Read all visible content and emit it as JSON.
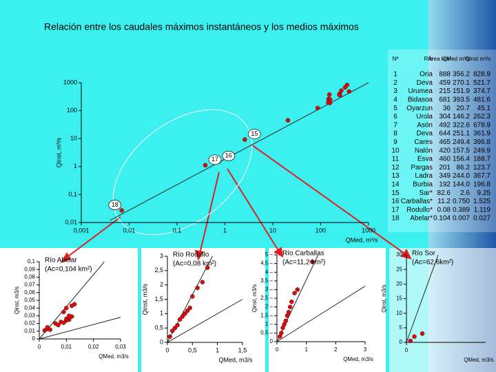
{
  "title": "Relación entre los caudales máximos instantáneos y los medios máximos",
  "chart_data": [
    {
      "type": "scatter",
      "log_x": true,
      "log_y": true,
      "color": "#d01010",
      "x_label": "QMed, m³/s",
      "y_label": "Qinst, m³/s",
      "xlim": [
        0.001,
        1000
      ],
      "ylim": [
        0.01,
        1000
      ],
      "xticks": [
        {
          "value": 0.001,
          "label": "0,001"
        },
        {
          "value": 0.01,
          "label": "0,01"
        },
        {
          "value": 0.1,
          "label": "0,1"
        },
        1,
        10,
        100,
        1000
      ],
      "yticks": [
        {
          "value": 0.01,
          "label": "0,01"
        },
        {
          "value": 0.1,
          "label": "0,1"
        },
        1,
        10,
        100,
        1000
      ],
      "x": [
        356.2,
        270.1,
        151.9,
        393.5,
        20.7,
        146.2,
        322.6,
        251.1,
        249.4,
        157.5,
        156.4,
        86.2,
        244.0,
        144.0,
        2.6,
        0.75,
        0.389,
        0.007
      ],
      "values": [
        828.9,
        521.7,
        374.7,
        481.6,
        45.1,
        262.3,
        678.9,
        361.9,
        396.8,
        249.9,
        188.7,
        123.7,
        367.7,
        196.8,
        9.25,
        1.525,
        1.119,
        0.027
      ],
      "lines": [
        {
          "x": [
            0.004,
            1000
          ],
          "values": [
            0.012,
            1000
          ]
        }
      ],
      "annotations": [
        "15",
        "16",
        "17",
        "18"
      ]
    },
    {
      "type": "scatter",
      "title": "Río Abelar",
      "subtitle": "(Ac=0,104 km²)",
      "color": "#d01010",
      "x_label": "QMed, m3/s",
      "y_label": "Qinst, m3/s",
      "xlim": [
        0,
        0.03
      ],
      "ylim": [
        0,
        0.1
      ],
      "xticks": [
        0,
        {
          "value": 0.01,
          "label": "0,01"
        },
        {
          "value": 0.02,
          "label": "0,02"
        },
        {
          "value": 0.03,
          "label": "0,03"
        }
      ],
      "yticks": [
        0,
        {
          "value": 0.01,
          "label": "0,01"
        },
        {
          "value": 0.02,
          "label": "0,02"
        },
        {
          "value": 0.03,
          "label": "0,03"
        },
        {
          "value": 0.04,
          "label": "0,04"
        },
        {
          "value": 0.05,
          "label": "0,05"
        },
        {
          "value": 0.06,
          "label": "0,06"
        },
        {
          "value": 0.07,
          "label": "0,07"
        },
        {
          "value": 0.08,
          "label": "0,08"
        },
        {
          "value": 0.09,
          "label": "0,09"
        },
        {
          "value": 0.1,
          "label": "0,1"
        }
      ],
      "x": [
        0.002,
        0.003,
        0.003,
        0.004,
        0.006,
        0.007,
        0.008,
        0.009,
        0.01,
        0.01,
        0.011,
        0.011,
        0.012,
        0.009,
        0.011,
        0.01,
        0.012,
        0.013
      ],
      "values": [
        0.011,
        0.013,
        0.015,
        0.012,
        0.02,
        0.018,
        0.022,
        0.021,
        0.024,
        0.026,
        0.025,
        0.028,
        0.029,
        0.035,
        0.03,
        0.04,
        0.043,
        0.045
      ],
      "lines": [
        {
          "x": [
            0,
            0.024
          ],
          "values": [
            0,
            0.1
          ]
        },
        {
          "x": [
            0,
            0.03
          ],
          "values": [
            0,
            0.028
          ]
        }
      ]
    },
    {
      "type": "scatter",
      "title": "Río Rodullo",
      "subtitle": "(Ac=0,08 km²)",
      "color": "#d01010",
      "x_label": "QMed, m3/s",
      "y_label": "Qinst, m3/s",
      "xlim": [
        0,
        1.5
      ],
      "ylim": [
        0,
        3
      ],
      "xticks": [
        0,
        {
          "value": 0.5,
          "label": "0,5"
        },
        1,
        {
          "value": 1.5,
          "label": "1,5"
        }
      ],
      "yticks": [
        0,
        {
          "value": 0.5,
          "label": "0,5"
        },
        1,
        {
          "value": 1.5,
          "label": "1,5"
        },
        2,
        {
          "value": 2.5,
          "label": "2,5"
        },
        3
      ],
      "x": [
        0.05,
        0.1,
        0.15,
        0.2,
        0.25,
        0.3,
        0.35,
        0.4,
        0.45,
        0.5,
        0.6,
        0.7,
        0.8
      ],
      "values": [
        0.2,
        0.4,
        0.5,
        0.6,
        0.8,
        0.9,
        1.0,
        1.1,
        1.2,
        1.6,
        1.9,
        2.1,
        2.6
      ],
      "lines": [
        {
          "x": [
            0,
            0.9
          ],
          "values": [
            0,
            3
          ]
        },
        {
          "x": [
            0,
            1.5
          ],
          "values": [
            0,
            1.5
          ]
        }
      ]
    },
    {
      "type": "scatter",
      "title": "Río Carballas",
      "subtitle": "(Ac=11,2 km²)",
      "color": "#d01010",
      "x_label": "QMed, m3/s",
      "y_label": "Qinst, m3/s",
      "xlim": [
        0,
        3
      ],
      "ylim": [
        0,
        5
      ],
      "xticks": [
        0,
        1,
        2,
        3
      ],
      "yticks": [
        0,
        {
          "value": 0.5,
          "label": "0,5 –"
        },
        {
          "value": 1,
          "label": "1 –"
        },
        {
          "value": 1.5,
          "label": "1,5 –"
        },
        {
          "value": 2,
          "label": "2 –"
        },
        {
          "value": 2.5,
          "label": "2,5 –"
        },
        {
          "value": 3,
          "label": "3 –"
        },
        {
          "value": 3.5,
          "label": "3,5 –"
        },
        {
          "value": 4,
          "label": "4 –"
        },
        {
          "value": 4.5,
          "label": "4,5 –"
        },
        {
          "value": 5,
          "label": "5 –"
        }
      ],
      "x": [
        0.1,
        0.15,
        0.2,
        0.25,
        0.3,
        0.35,
        0.4,
        0.45,
        0.5,
        0.6,
        0.7,
        1.2
      ],
      "values": [
        0.3,
        0.5,
        0.8,
        1.0,
        1.2,
        1.5,
        1.7,
        2.0,
        2.3,
        2.8,
        3.0,
        4.6
      ],
      "lines": [
        {
          "x": [
            0,
            1.4
          ],
          "values": [
            0,
            5
          ]
        },
        {
          "x": [
            0,
            3
          ],
          "values": [
            0,
            3.2
          ]
        }
      ]
    },
    {
      "type": "scatter",
      "title": "Río Sor",
      "subtitle": "(Ac=62,6km²)",
      "color": "#d01010",
      "x_label": "QMed, m3/s",
      "y_label": "Qinst, m3/s",
      "xlim": [
        0,
        10
      ],
      "ylim": [
        0,
        30
      ],
      "xticks": [
        0
      ],
      "yticks": [
        0,
        5,
        10,
        15,
        20,
        25,
        30
      ],
      "x": [
        0.5,
        1,
        2
      ],
      "values": [
        0.5,
        2,
        3
      ],
      "lines": [
        {
          "x": [
            0,
            4
          ],
          "values": [
            0,
            30
          ]
        }
      ]
    }
  ],
  "table": {
    "header": [
      "Nº",
      "Río",
      "Área km²",
      "QMed m³/s",
      "Qinst m³/s"
    ],
    "rows": [
      [
        "1",
        "Oria",
        "888",
        "356.2",
        "828.9"
      ],
      [
        "2",
        "Deva",
        "459",
        "270.1",
        "521.7"
      ],
      [
        "3",
        "Urumea",
        "215",
        "151.9",
        "374.7"
      ],
      [
        "4",
        "Bidasoa",
        "681",
        "393.5",
        "481.6"
      ],
      [
        "5",
        "Oyarzun",
        "36",
        "20.7",
        "45.1"
      ],
      [
        "6",
        "Urola",
        "304",
        "146.2",
        "262.3"
      ],
      [
        "7",
        "Asón",
        "492",
        "322.6",
        "678.9"
      ],
      [
        "8",
        "Deva",
        "644",
        "251.1",
        "361.9"
      ],
      [
        "9",
        "Cares",
        "465",
        "249.4",
        "396.8"
      ],
      [
        "10",
        "Nalón",
        "420",
        "157.5",
        "249.9"
      ],
      [
        "11",
        "Esva",
        "460",
        "156.4",
        "188.7"
      ],
      [
        "12",
        "Pargas",
        "201",
        "86.2",
        "123.7"
      ],
      [
        "13",
        "Ladra",
        "349",
        "244.0",
        "367.7"
      ],
      [
        "14",
        "Burbia",
        "192",
        "144.0",
        "196.8"
      ],
      [
        "15",
        "Sar*",
        "82.6",
        "2.6",
        "9.25"
      ],
      [
        "16",
        "Carballas*",
        "11.2",
        "0.750",
        "1.525"
      ],
      [
        "17",
        "Rodullo*",
        "0.08",
        "0.389",
        "1.119"
      ],
      [
        "18",
        "Abelar*",
        "0.104",
        "0.007",
        "0.027"
      ]
    ]
  }
}
